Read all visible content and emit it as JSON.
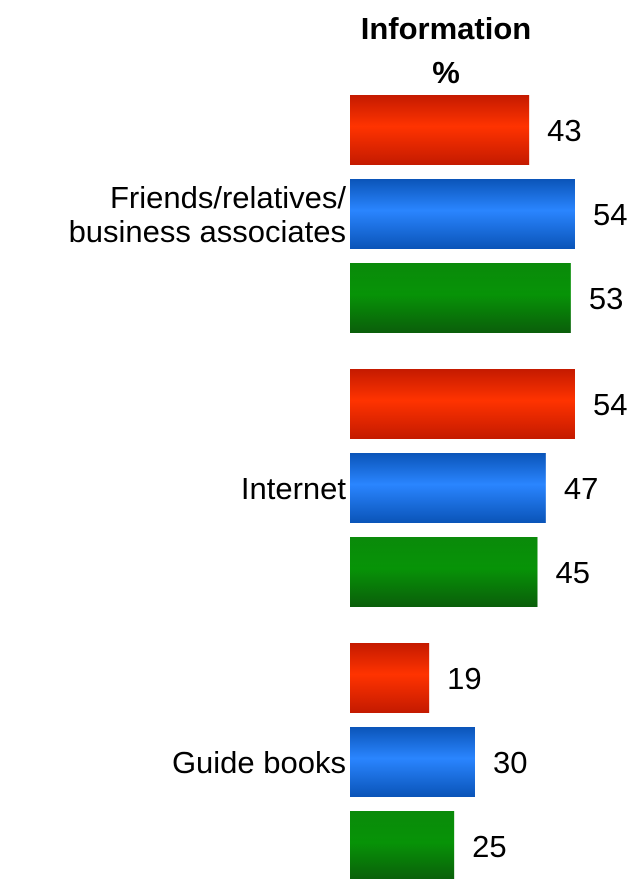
{
  "chart_data": {
    "type": "bar",
    "orientation": "horizontal",
    "title": "Information",
    "subtitle": "%",
    "categories": [
      "Friends/relatives/\nbusiness associates",
      "Internet",
      "Guide books"
    ],
    "series": [
      {
        "values": [
          43,
          54,
          19
        ]
      },
      {
        "values": [
          54,
          47,
          30
        ]
      },
      {
        "values": [
          53,
          45,
          25
        ]
      }
    ],
    "xlim": [
      0,
      54
    ],
    "grid": false,
    "legend": "none"
  },
  "colors": {
    "series": [
      {
        "top": "#c41a00",
        "mid": "#ff3300",
        "bottom": "#c41a00"
      },
      {
        "top": "#0a54b8",
        "mid": "#2a85ff",
        "bottom": "#0a54b8"
      },
      {
        "top": "#0a8a0a",
        "mid": "#079307",
        "bottom": "#0a5e0a"
      }
    ]
  }
}
